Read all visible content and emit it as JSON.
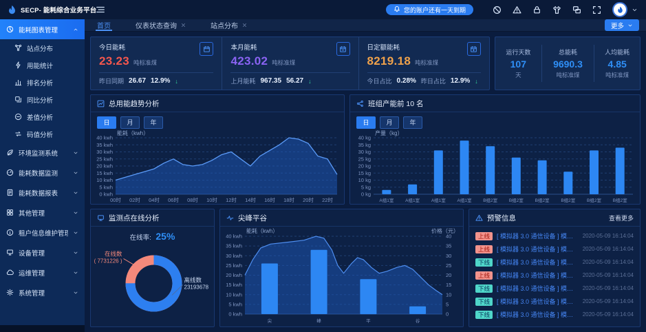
{
  "app": {
    "title": "SECP- 能耗综合业务平台",
    "notice": "您的账户还有一天到期"
  },
  "header": {
    "more_label": "更多",
    "icons": [
      {
        "name": "shield-off-icon"
      },
      {
        "name": "alert-triangle-icon"
      },
      {
        "name": "lock-icon"
      },
      {
        "name": "theme-skin-icon"
      },
      {
        "name": "multi-screen-icon"
      },
      {
        "name": "fullscreen-icon"
      }
    ]
  },
  "tabs": [
    {
      "label": "首页",
      "active": true,
      "closable": false
    },
    {
      "label": "仪表状态查询",
      "active": false,
      "closable": true
    },
    {
      "label": "站点分布",
      "active": false,
      "closable": true
    }
  ],
  "sidebar": {
    "groups": [
      {
        "label": "能耗图表管理",
        "icon": "pie-chart-icon",
        "active": true,
        "expanded": true,
        "children": [
          {
            "label": "站点分布",
            "icon": "site-icon"
          },
          {
            "label": "用能统计",
            "icon": "energy-icon"
          },
          {
            "label": "排名分析",
            "icon": "ranking-icon"
          },
          {
            "label": "同比分析",
            "icon": "compare-icon"
          },
          {
            "label": "差值分析",
            "icon": "difference-icon"
          },
          {
            "label": "码值分析",
            "icon": "code-icon"
          }
        ]
      },
      {
        "label": "环境监测系统",
        "icon": "leaf-icon"
      },
      {
        "label": "能耗数据监测",
        "icon": "gauge-icon"
      },
      {
        "label": "能耗数据报表",
        "icon": "report-icon"
      },
      {
        "label": "其他管理",
        "icon": "grid-icon"
      },
      {
        "label": "租户信息维护管理",
        "icon": "info-icon"
      },
      {
        "label": "设备管理",
        "icon": "device-icon"
      },
      {
        "label": "运维管理",
        "icon": "cloud-icon"
      },
      {
        "label": "系统管理",
        "icon": "gear-icon"
      }
    ]
  },
  "stat_cards": [
    {
      "title": "今日能耗",
      "value": "23.23",
      "unit": "吨标准煤",
      "color": "#f5574d",
      "icon": "calendar-day-icon",
      "footer": [
        {
          "label": "昨日同期",
          "value": "26.67"
        },
        {
          "label": "",
          "value": "12.9%",
          "arrow": "down"
        }
      ]
    },
    {
      "title": "本月能耗",
      "value": "423.02",
      "unit": "吨标准煤",
      "color": "#8a63f3",
      "icon": "calendar-month-icon",
      "footer": [
        {
          "label": "上月能耗",
          "value": "967.35"
        },
        {
          "label": "",
          "value": "56.27",
          "arrow": "down"
        }
      ]
    },
    {
      "title": "日定额能耗",
      "value": "8219.18",
      "unit": "吨标准煤",
      "color": "#f0a24b",
      "icon": "calendar-quota-icon",
      "footer": [
        {
          "label": "今日占比",
          "value": "0.28%"
        },
        {
          "label": "昨日占比",
          "value": "12.9%",
          "arrow": "down"
        }
      ]
    }
  ],
  "summary": {
    "items": [
      {
        "label": "运行天数",
        "value": "107",
        "unit": "天"
      },
      {
        "label": "总能耗",
        "value": "9690.3",
        "unit": "吨标准煤"
      },
      {
        "label": "人均能耗",
        "value": "4.85",
        "unit": "吨标准煤"
      }
    ]
  },
  "chart_data": [
    {
      "id": "trend",
      "type": "area",
      "title": "总用能趋势分析",
      "icon": "line-chart-icon",
      "tabs": [
        "日",
        "月",
        "年"
      ],
      "active_tab": "日",
      "ylabel": "能耗（kwh）",
      "unit": "kwh",
      "ylim": [
        0,
        40
      ],
      "yticks": [
        0,
        5,
        10,
        15,
        20,
        25,
        30,
        35,
        40
      ],
      "x": [
        "00时",
        "02时",
        "04时",
        "06时",
        "08时",
        "10时",
        "12时",
        "14时",
        "16时",
        "18时",
        "20时",
        "22时"
      ],
      "values": [
        10,
        12,
        14,
        16,
        18,
        22,
        25,
        21,
        20,
        21,
        24,
        28,
        30,
        25,
        20,
        27,
        31,
        35,
        40,
        39,
        36,
        27,
        25,
        14
      ],
      "area_color": "#1e57b8",
      "line_color": "#5b9bf8",
      "grid": true,
      "legend": "none"
    },
    {
      "id": "ranking",
      "type": "bar",
      "title": "班组产能前 10 名",
      "icon": "share-icon",
      "tabs": [
        "日",
        "月",
        "年"
      ],
      "active_tab": "日",
      "ylabel": "产量（kg）",
      "unit": "kg",
      "ylim": [
        0,
        40
      ],
      "yticks": [
        0,
        5,
        10,
        15,
        20,
        25,
        30,
        35,
        40
      ],
      "categories": [
        "A组1室",
        "A组1室",
        "A组1室",
        "A组1室",
        "B组2室",
        "B组2室",
        "B组2室",
        "B组2室",
        "B组2室",
        "B组2室"
      ],
      "values": [
        3,
        7,
        31,
        38,
        34,
        26,
        24,
        16,
        31,
        33
      ],
      "bar_color": "#2d87f3",
      "grid": true,
      "legend": "none"
    },
    {
      "id": "online",
      "type": "pie",
      "title": "监测点在线分析",
      "icon": "monitor-icon",
      "rate_label": "在线率:",
      "rate_value": "25%",
      "slices": [
        {
          "label": "在线数",
          "display": "( 7731226 )",
          "value": 7731226,
          "color": "#f4897b"
        },
        {
          "label": "离线数",
          "display": "23193678",
          "value": 23193678,
          "color": "#2d7ff0"
        }
      ]
    },
    {
      "id": "peak",
      "type": "bar+area",
      "title": "尖峰平谷",
      "icon": "pulse-icon",
      "ylabel_left": "能耗（kwh）",
      "ylabel_right": "价格（元）",
      "unit": "kwh",
      "ylim": [
        0,
        40
      ],
      "yticks": [
        0,
        5,
        10,
        15,
        20,
        25,
        30,
        35,
        40
      ],
      "categories": [
        "尖",
        "峰",
        "平",
        "谷"
      ],
      "bar_values": [
        26,
        33,
        18,
        4
      ],
      "area_points": [
        [
          0,
          20
        ],
        [
          0.04,
          28
        ],
        [
          0.08,
          34
        ],
        [
          0.13,
          36
        ],
        [
          0.22,
          37
        ],
        [
          0.3,
          38
        ],
        [
          0.36,
          40
        ],
        [
          0.4,
          39
        ],
        [
          0.44,
          33
        ],
        [
          0.47,
          25
        ],
        [
          0.5,
          21
        ],
        [
          0.54,
          26
        ],
        [
          0.57,
          29
        ],
        [
          0.6,
          28
        ],
        [
          0.64,
          24
        ],
        [
          0.68,
          21
        ],
        [
          0.72,
          22
        ],
        [
          0.77,
          24
        ],
        [
          0.81,
          25
        ],
        [
          0.85,
          23
        ],
        [
          0.89,
          19
        ],
        [
          0.93,
          15
        ],
        [
          0.97,
          12
        ],
        [
          1,
          10
        ]
      ],
      "bar_color": "#2d87f3",
      "area_color": "#1e57b8",
      "line_color": "#4e8ef0"
    }
  ],
  "alerts": {
    "title": "预警信息",
    "more": "查看更多",
    "rows": [
      {
        "status": "上线",
        "text": "[ 模拟器 3.0 通信设备 ] 模拟器 3.0...",
        "time": "2020-05-09 16:14:04"
      },
      {
        "status": "上线",
        "text": "[ 模拟器 3.0 通信设备 ] 模拟器 3.0...",
        "time": "2020-05-09 16:14:04"
      },
      {
        "status": "下线",
        "text": "[ 模拟器 3.0 通信设备 ] 模拟器 3.0...",
        "time": "2020-05-09 16:14:04"
      },
      {
        "status": "上线",
        "text": "[ 模拟器 3.0 通信设备 ] 模拟器 3.0...",
        "time": "2020-05-09 16:14:04"
      },
      {
        "status": "下线",
        "text": "[ 模拟器 3.0 通信设备 ] 模拟器 3.0...",
        "time": "2020-05-09 16:14:04"
      },
      {
        "status": "下线",
        "text": "[ 模拟器 3.0 通信设备 ] 模拟器 3.0...",
        "time": "2020-05-09 16:14:04"
      },
      {
        "status": "下线",
        "text": "[ 模拟器 3.0 通信设备 ] 模拟器 3.0...",
        "time": "2020-05-09 16:14:04"
      }
    ]
  },
  "colors": {
    "accent": "#2a7cf0",
    "today_red": "#f5574d",
    "month_purple": "#8a63f3",
    "quota_orange": "#f0a24b",
    "stat_blue": "#2f8ff7",
    "bar_blue": "#2d87f3",
    "online_pink": "#f4897b",
    "offline_blue": "#2d7ff0",
    "badge_online_bg": "#f2938c",
    "badge_offline_bg": "#4fd6c9",
    "down_arrow_green": "#35d69b"
  }
}
